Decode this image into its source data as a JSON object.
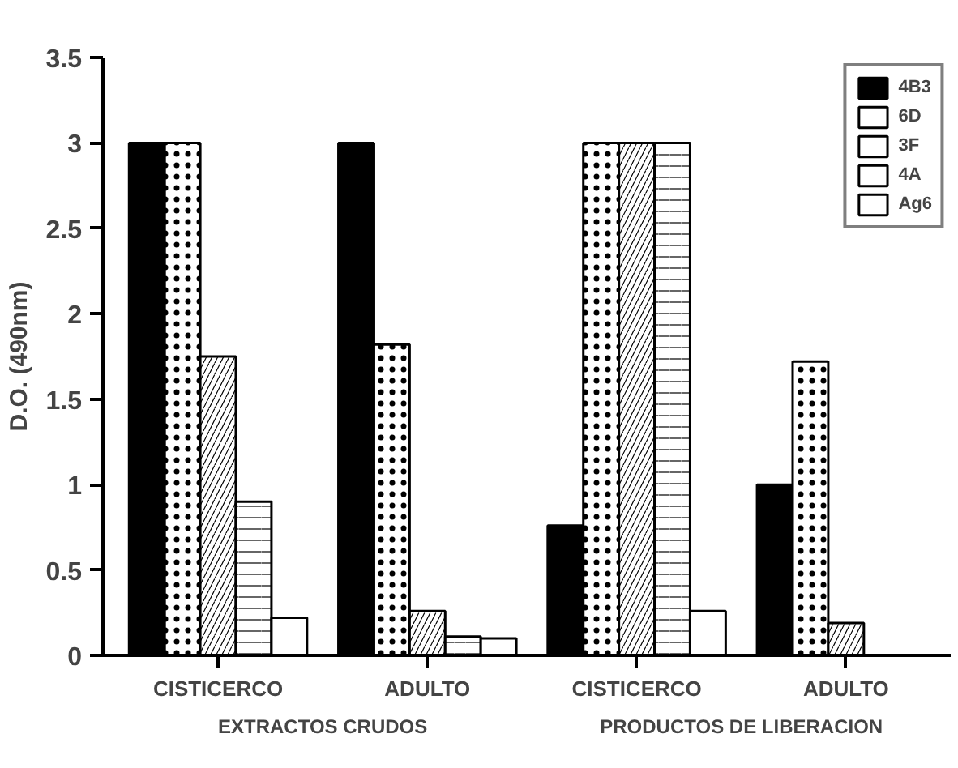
{
  "chart_data": {
    "type": "bar",
    "ylabel": "D.O. (490nm)",
    "categories": [
      "CISTICERCO",
      "ADULTO",
      "CISTICERCO",
      "ADULTO"
    ],
    "series": [
      {
        "name": "4B3",
        "color": "#000000",
        "values": [
          3.0,
          3.0,
          0.76,
          1.0
        ]
      },
      {
        "name": "6D",
        "color": "#ffffff",
        "values": [
          3.0,
          1.82,
          3.0,
          1.72
        ]
      },
      {
        "name": "3F",
        "color": "#ffffff",
        "values": [
          1.75,
          0.26,
          3.0,
          0.19
        ]
      },
      {
        "name": "4A",
        "color": "#ffffff",
        "values": [
          0.9,
          0.11,
          3.0,
          null
        ]
      },
      {
        "name": "Ag6",
        "color": "#ffffff",
        "values": [
          0.22,
          0.1,
          0.26,
          null
        ]
      }
    ],
    "ylim": [
      0,
      3.5
    ],
    "yticks": [
      0,
      0.5,
      1,
      1.5,
      2,
      2.5,
      3,
      3.5
    ],
    "annotations": [
      "EXTRACTOS CRUDOS",
      "PRODUCTOS DE LIBERACION"
    ],
    "legend": "top right",
    "grid": false
  }
}
